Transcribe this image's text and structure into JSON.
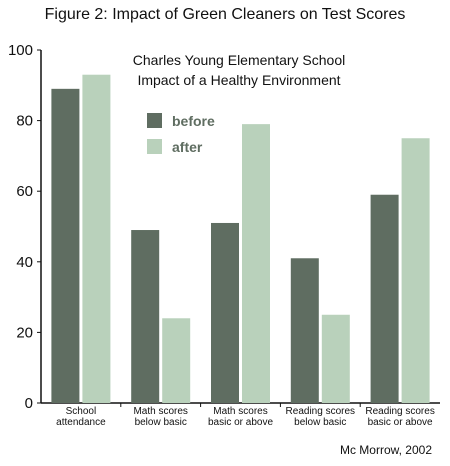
{
  "figure_title": "Figure 2: Impact of Green Cleaners on Test Scores",
  "credit": "Mc Morrow, 2002",
  "colors": {
    "before": "#5f6d61",
    "after": "#b9d1bb",
    "axis": "#111111"
  },
  "chart_data": {
    "type": "bar",
    "title": "Charles Young Elementary School",
    "subtitle": "Impact of a Healthy Environment",
    "categories": [
      [
        "School",
        "attendance"
      ],
      [
        "Math scores",
        "below basic"
      ],
      [
        "Math scores",
        "basic or above"
      ],
      [
        "Reading scores",
        "below basic"
      ],
      [
        "Reading scores",
        "basic or above"
      ]
    ],
    "series": [
      {
        "name": "before",
        "values": [
          89,
          49,
          51,
          41,
          59
        ]
      },
      {
        "name": "after",
        "values": [
          93,
          24,
          79,
          25,
          75
        ]
      }
    ],
    "ylim": [
      0,
      100
    ],
    "yticks": [
      0,
      20,
      40,
      60,
      80,
      100
    ],
    "grid": false,
    "legend_position": "top-center"
  }
}
